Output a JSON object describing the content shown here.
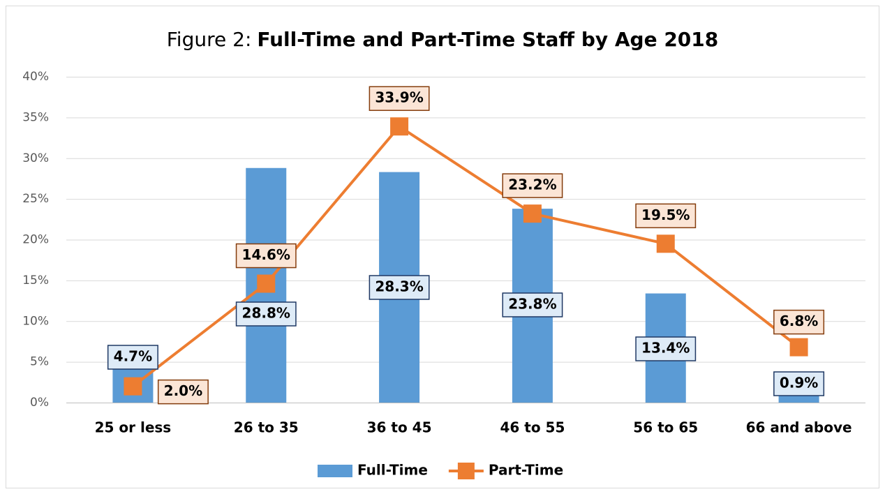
{
  "chart_data": {
    "type": "bar",
    "title": [
      "Figure 2:",
      "Full-Time and Part-Time Staff by Age 2018"
    ],
    "categories": [
      "25 or less",
      "26 to 35",
      "36 to 45",
      "46 to 55",
      "56 to 65",
      "66 and above"
    ],
    "series": [
      {
        "name": "Full-Time",
        "type": "bar",
        "color": "#5b9bd5",
        "values": [
          4.7,
          28.8,
          28.3,
          23.8,
          13.4,
          0.9
        ],
        "value_labels": [
          "4.7%",
          "28.8%",
          "28.3%",
          "23.8%",
          "13.4%",
          "0.9%"
        ]
      },
      {
        "name": "Part-Time",
        "type": "line",
        "color": "#ed7d31",
        "values": [
          2.0,
          14.6,
          33.9,
          23.2,
          19.5,
          6.8
        ],
        "value_labels": [
          "2.0%",
          "14.6%",
          "33.9%",
          "23.2%",
          "19.5%",
          "6.8%"
        ]
      }
    ],
    "ylim": [
      0,
      40
    ],
    "yticks": [
      {
        "value": 0,
        "label": "0%"
      },
      {
        "value": 5,
        "label": "5%"
      },
      {
        "value": 10,
        "label": "10%"
      },
      {
        "value": 15,
        "label": "15%"
      },
      {
        "value": 20,
        "label": "20%"
      },
      {
        "value": 25,
        "label": "25%"
      },
      {
        "value": 30,
        "label": "30%"
      },
      {
        "value": 35,
        "label": "35%"
      },
      {
        "value": 40,
        "label": "40%"
      }
    ],
    "grid": true,
    "legend": "bottom"
  }
}
